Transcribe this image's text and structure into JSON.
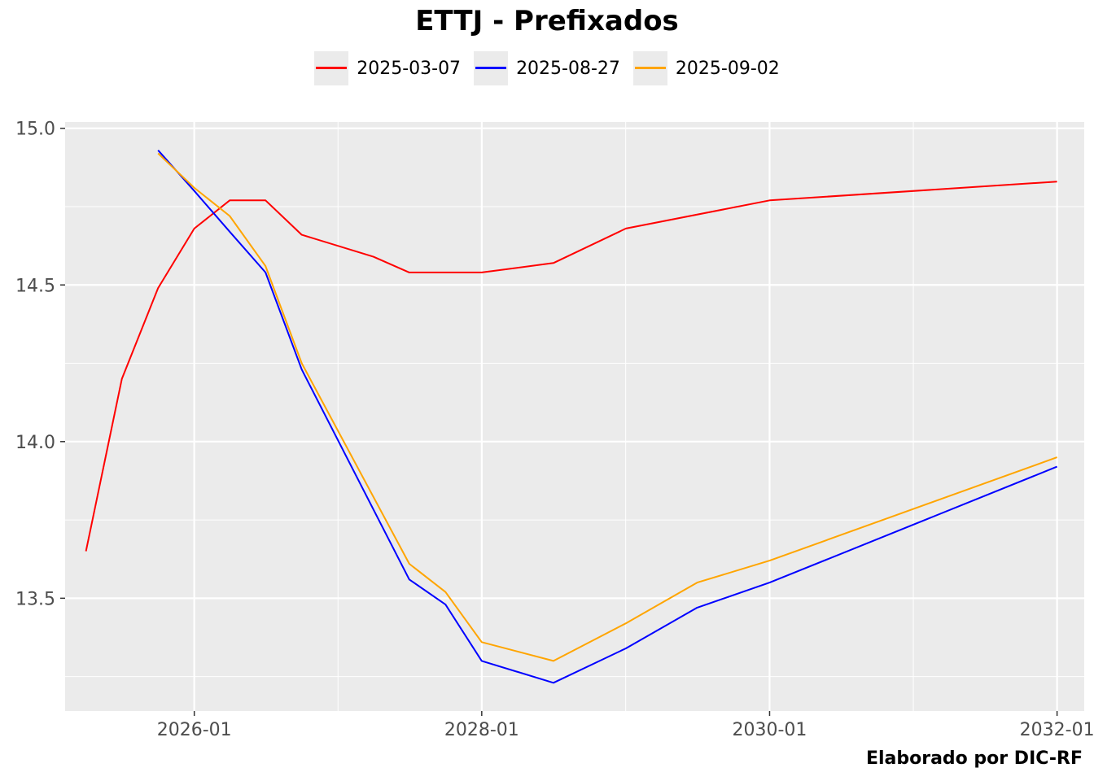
{
  "chart_data": {
    "type": "line",
    "title": "ETTJ - Prefixados",
    "xlabel": "",
    "ylabel": "",
    "caption": "Elaborado por DIC-RF",
    "x_axis": {
      "type": "date",
      "range": [
        "2025-02-07",
        "2032-03-10"
      ],
      "ticks": [
        "2026-01-01",
        "2028-01-01",
        "2030-01-01",
        "2032-01-01"
      ],
      "tick_labels": [
        "2026-01",
        "2028-01",
        "2030-01",
        "2032-01"
      ]
    },
    "y_axis": {
      "range": [
        13.14,
        15.02
      ],
      "ticks": [
        13.5,
        14.0,
        14.5,
        15.0
      ],
      "tick_labels": [
        "13.5",
        "14.0",
        "14.5",
        "15.0"
      ]
    },
    "grid": true,
    "legend": "top",
    "series": [
      {
        "name": "2025-03-07",
        "color": "#ff0000",
        "points": [
          [
            "2025-04-01",
            13.65
          ],
          [
            "2025-07-01",
            14.2
          ],
          [
            "2025-10-01",
            14.49
          ],
          [
            "2026-01-01",
            14.68
          ],
          [
            "2026-04-01",
            14.77
          ],
          [
            "2026-07-01",
            14.77
          ],
          [
            "2026-10-01",
            14.66
          ],
          [
            "2027-04-01",
            14.59
          ],
          [
            "2027-07-01",
            14.54
          ],
          [
            "2028-01-01",
            14.54
          ],
          [
            "2028-07-01",
            14.57
          ],
          [
            "2029-01-01",
            14.68
          ],
          [
            "2030-01-01",
            14.77
          ],
          [
            "2032-01-01",
            14.83
          ]
        ]
      },
      {
        "name": "2025-08-27",
        "color": "#0000ff",
        "points": [
          [
            "2025-10-01",
            14.93
          ],
          [
            "2026-01-01",
            14.8
          ],
          [
            "2026-04-01",
            14.67
          ],
          [
            "2026-07-01",
            14.54
          ],
          [
            "2026-10-01",
            14.23
          ],
          [
            "2027-07-01",
            13.56
          ],
          [
            "2027-10-01",
            13.48
          ],
          [
            "2028-01-01",
            13.3
          ],
          [
            "2028-07-01",
            13.23
          ],
          [
            "2029-01-01",
            13.34
          ],
          [
            "2029-07-01",
            13.47
          ],
          [
            "2030-01-01",
            13.55
          ],
          [
            "2032-01-01",
            13.92
          ]
        ]
      },
      {
        "name": "2025-09-02",
        "color": "#ffa500",
        "points": [
          [
            "2025-10-01",
            14.92
          ],
          [
            "2026-01-01",
            14.81
          ],
          [
            "2026-04-01",
            14.72
          ],
          [
            "2026-07-01",
            14.56
          ],
          [
            "2026-10-01",
            14.25
          ],
          [
            "2027-07-01",
            13.61
          ],
          [
            "2027-10-01",
            13.52
          ],
          [
            "2028-01-01",
            13.36
          ],
          [
            "2028-07-01",
            13.3
          ],
          [
            "2029-01-01",
            13.42
          ],
          [
            "2029-07-01",
            13.55
          ],
          [
            "2030-01-01",
            13.62
          ],
          [
            "2032-01-01",
            13.95
          ]
        ]
      }
    ]
  }
}
